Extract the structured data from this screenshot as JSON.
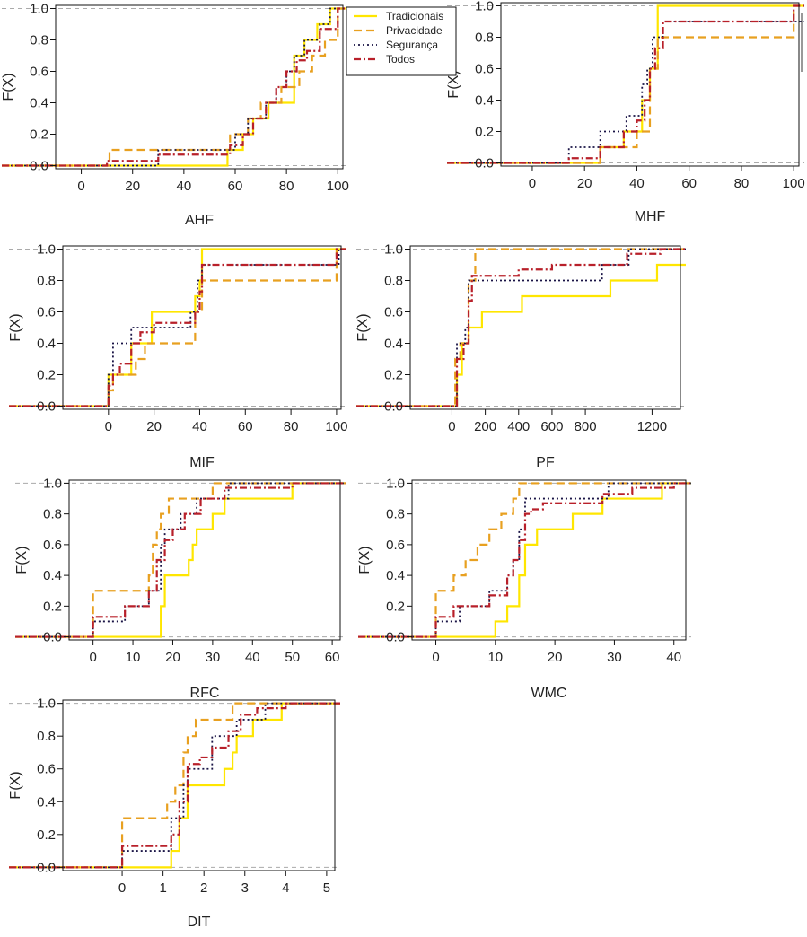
{
  "series_styles": [
    {
      "key": "trad",
      "color": "#ffe600",
      "dash": "",
      "width": 2.2
    },
    {
      "key": "priv",
      "color": "#e8a020",
      "dash": "9 5",
      "width": 2.2
    },
    {
      "key": "seg",
      "color": "#1a1446",
      "dash": "2 3",
      "width": 1.8
    },
    {
      "key": "todos",
      "color": "#b8202a",
      "dash": "8 3 2 3",
      "width": 2.2
    }
  ],
  "legend": {
    "entries": [
      "Tradicionais",
      "Privacidade",
      "Segurança",
      "Todos"
    ]
  },
  "chart_data": [
    {
      "type": "line",
      "xlabel": "AHF",
      "ylabel": "F(X)",
      "xlim": [
        -10,
        102
      ],
      "ylim": [
        -0.02,
        1.02
      ],
      "xticks": [
        0,
        20,
        40,
        60,
        80,
        100
      ],
      "yticks": [
        0.0,
        0.2,
        0.4,
        0.6,
        0.8,
        1.0
      ],
      "series": [
        {
          "x": [
            57,
            63,
            67,
            73,
            83,
            87,
            92,
            97
          ],
          "y": [
            0.1,
            0.2,
            0.3,
            0.4,
            0.7,
            0.8,
            0.9,
            1.0
          ]
        },
        {
          "x": [
            11,
            58,
            65,
            70,
            78,
            85,
            90,
            95,
            100
          ],
          "y": [
            0.1,
            0.2,
            0.3,
            0.4,
            0.5,
            0.6,
            0.7,
            0.8,
            1.0
          ]
        },
        {
          "x": [
            30,
            60,
            65,
            72,
            76,
            80,
            83,
            87,
            93,
            97
          ],
          "y": [
            0.1,
            0.2,
            0.3,
            0.4,
            0.5,
            0.6,
            0.7,
            0.8,
            0.9,
            1.0
          ]
        },
        {
          "x": [
            10,
            30,
            58,
            63,
            67,
            72,
            76,
            80,
            84,
            88,
            93,
            100
          ],
          "y": [
            0.03,
            0.07,
            0.13,
            0.2,
            0.3,
            0.4,
            0.5,
            0.6,
            0.67,
            0.73,
            0.87,
            1.0
          ]
        }
      ]
    },
    {
      "type": "line",
      "xlabel": "MHF",
      "ylabel": "F(X)",
      "xlim": [
        -12,
        102
      ],
      "ylim": [
        -0.02,
        1.02
      ],
      "xticks": [
        0,
        20,
        40,
        60,
        80,
        100
      ],
      "yticks": [
        0.0,
        0.2,
        0.4,
        0.6,
        0.8,
        1.0
      ],
      "series": [
        {
          "x": [
            26,
            35,
            42,
            45,
            48
          ],
          "y": [
            0.1,
            0.2,
            0.4,
            0.6,
            1.0
          ]
        },
        {
          "x": [
            26,
            40,
            45,
            48,
            100
          ],
          "y": [
            0.1,
            0.2,
            0.6,
            0.8,
            1.0
          ]
        },
        {
          "x": [
            14,
            26,
            36,
            42,
            44,
            46,
            50
          ],
          "y": [
            0.1,
            0.2,
            0.3,
            0.5,
            0.6,
            0.8,
            0.9
          ]
        },
        {
          "x": [
            14,
            26,
            35,
            40,
            43,
            45,
            47,
            50,
            100
          ],
          "y": [
            0.03,
            0.1,
            0.2,
            0.27,
            0.4,
            0.6,
            0.73,
            0.9,
            1.0
          ]
        }
      ]
    },
    {
      "type": "line",
      "xlabel": "MIF",
      "ylabel": "F(X)",
      "xlim": [
        -20,
        102
      ],
      "ylim": [
        -0.02,
        1.02
      ],
      "xticks": [
        0,
        20,
        40,
        60,
        80,
        100
      ],
      "yticks": [
        0.0,
        0.2,
        0.4,
        0.6,
        0.8,
        1.0
      ],
      "series": [
        {
          "x": [
            0,
            10,
            19,
            38,
            40,
            41
          ],
          "y": [
            0.2,
            0.4,
            0.6,
            0.7,
            0.8,
            1.0
          ]
        },
        {
          "x": [
            0,
            2,
            12,
            16,
            38,
            41,
            100
          ],
          "y": [
            0.1,
            0.2,
            0.3,
            0.4,
            0.6,
            0.8,
            1.0
          ]
        },
        {
          "x": [
            0,
            2,
            10,
            16,
            36,
            39,
            41,
            101
          ],
          "y": [
            0.2,
            0.4,
            0.5,
            0.5,
            0.6,
            0.8,
            0.9,
            1.0
          ]
        },
        {
          "x": [
            0,
            2,
            5,
            10,
            14,
            20,
            30,
            38,
            40,
            41,
            100
          ],
          "y": [
            0.13,
            0.2,
            0.27,
            0.4,
            0.47,
            0.53,
            0.53,
            0.6,
            0.73,
            0.9,
            1.0
          ]
        }
      ]
    },
    {
      "type": "line",
      "xlabel": "PF",
      "ylabel": "F(X)",
      "xlim": [
        -250,
        1370
      ],
      "ylim": [
        -0.02,
        1.02
      ],
      "xticks": [
        0,
        200,
        400,
        600,
        800,
        1200
      ],
      "yticks": [
        0.0,
        0.2,
        0.4,
        0.6,
        0.8,
        1.0
      ],
      "series": [
        {
          "x": [
            30,
            60,
            100,
            180,
            420,
            950,
            1230
          ],
          "y": [
            0.2,
            0.4,
            0.5,
            0.6,
            0.7,
            0.8,
            0.9
          ]
        },
        {
          "x": [
            20,
            50,
            100,
            140
          ],
          "y": [
            0.3,
            0.4,
            0.8,
            1.0
          ]
        },
        {
          "x": [
            30,
            80,
            100,
            150,
            600,
            900,
            1000,
            1060
          ],
          "y": [
            0.4,
            0.5,
            0.8,
            0.8,
            0.8,
            0.9,
            0.9,
            1.0
          ]
        },
        {
          "x": [
            30,
            70,
            100,
            120,
            400,
            600,
            900,
            1050,
            1250
          ],
          "y": [
            0.3,
            0.4,
            0.67,
            0.83,
            0.87,
            0.9,
            0.9,
            0.97,
            1.0
          ]
        }
      ]
    },
    {
      "type": "line",
      "xlabel": "RFC",
      "ylabel": "F(X)",
      "xlim": [
        -6,
        62
      ],
      "ylim": [
        -0.02,
        1.02
      ],
      "xticks": [
        0,
        10,
        20,
        30,
        40,
        50,
        60
      ],
      "yticks": [
        0.0,
        0.2,
        0.4,
        0.6,
        0.8,
        1.0
      ],
      "series": [
        {
          "x": [
            17,
            18,
            24,
            25,
            26,
            30,
            33,
            50,
            62
          ],
          "y": [
            0.2,
            0.4,
            0.5,
            0.6,
            0.7,
            0.8,
            0.9,
            1.0,
            1.0
          ]
        },
        {
          "x": [
            0,
            14,
            15,
            16,
            17,
            19,
            20,
            30,
            32
          ],
          "y": [
            0.3,
            0.4,
            0.6,
            0.7,
            0.8,
            0.9,
            0.9,
            1.0,
            1.0
          ]
        },
        {
          "x": [
            0,
            8,
            14,
            17,
            18,
            22,
            26,
            34,
            38,
            62
          ],
          "y": [
            0.1,
            0.2,
            0.3,
            0.6,
            0.7,
            0.8,
            0.9,
            1.0,
            1.0,
            1.0
          ]
        },
        {
          "x": [
            0,
            8,
            14,
            16,
            18,
            20,
            23,
            27,
            33,
            38,
            50
          ],
          "y": [
            0.13,
            0.2,
            0.3,
            0.5,
            0.63,
            0.7,
            0.8,
            0.9,
            0.97,
            0.97,
            1.0
          ]
        }
      ]
    },
    {
      "type": "line",
      "xlabel": "WMC",
      "ylabel": "F(X)",
      "xlim": [
        -4,
        42
      ],
      "ylim": [
        -0.02,
        1.02
      ],
      "xticks": [
        0,
        10,
        20,
        30,
        40
      ],
      "yticks": [
        0.0,
        0.2,
        0.4,
        0.6,
        0.8,
        1.0
      ],
      "series": [
        {
          "x": [
            10,
            12,
            14,
            15,
            17,
            23,
            28,
            38
          ],
          "y": [
            0.1,
            0.2,
            0.4,
            0.6,
            0.7,
            0.8,
            0.9,
            1.0
          ]
        },
        {
          "x": [
            0,
            3,
            5,
            7,
            9,
            11,
            13,
            14
          ],
          "y": [
            0.3,
            0.4,
            0.5,
            0.6,
            0.7,
            0.8,
            0.9,
            1.0
          ]
        },
        {
          "x": [
            0,
            4,
            9,
            12,
            13,
            14,
            15,
            27,
            29,
            39
          ],
          "y": [
            0.1,
            0.2,
            0.3,
            0.4,
            0.5,
            0.7,
            0.9,
            0.9,
            1.0,
            1.0
          ]
        },
        {
          "x": [
            0,
            3,
            9,
            12,
            13,
            14,
            15,
            16,
            18,
            28,
            33,
            40
          ],
          "y": [
            0.13,
            0.2,
            0.27,
            0.4,
            0.5,
            0.63,
            0.8,
            0.83,
            0.87,
            0.93,
            0.97,
            1.0
          ]
        }
      ]
    },
    {
      "type": "line",
      "xlabel": "DIT",
      "ylabel": "F(X)",
      "xlim": [
        -1.45,
        5.2
      ],
      "ylim": [
        -0.02,
        1.02
      ],
      "xticks": [
        0,
        1,
        2,
        3,
        4,
        5
      ],
      "yticks": [
        0.0,
        0.2,
        0.4,
        0.6,
        0.8,
        1.0
      ],
      "series": [
        {
          "x": [
            1.2,
            1.4,
            1.6,
            2.5,
            2.7,
            2.8,
            3.2,
            3.9
          ],
          "y": [
            0.1,
            0.3,
            0.5,
            0.6,
            0.7,
            0.8,
            0.9,
            1.0
          ]
        },
        {
          "x": [
            0,
            1.1,
            1.3,
            1.5,
            1.6,
            1.8,
            2.7,
            3.0
          ],
          "y": [
            0.3,
            0.4,
            0.5,
            0.7,
            0.8,
            0.9,
            1.0,
            1.0
          ]
        },
        {
          "x": [
            0,
            1.2,
            1.5,
            1.6,
            2.2,
            2.5,
            2.8,
            3.0,
            3.5
          ],
          "y": [
            0.1,
            0.3,
            0.5,
            0.6,
            0.8,
            0.8,
            0.9,
            0.9,
            1.0
          ]
        },
        {
          "x": [
            0,
            1.2,
            1.4,
            1.6,
            1.9,
            2.2,
            2.6,
            2.9,
            3.3,
            4.0
          ],
          "y": [
            0.13,
            0.2,
            0.4,
            0.63,
            0.67,
            0.73,
            0.83,
            0.93,
            0.97,
            1.0
          ]
        }
      ]
    }
  ]
}
